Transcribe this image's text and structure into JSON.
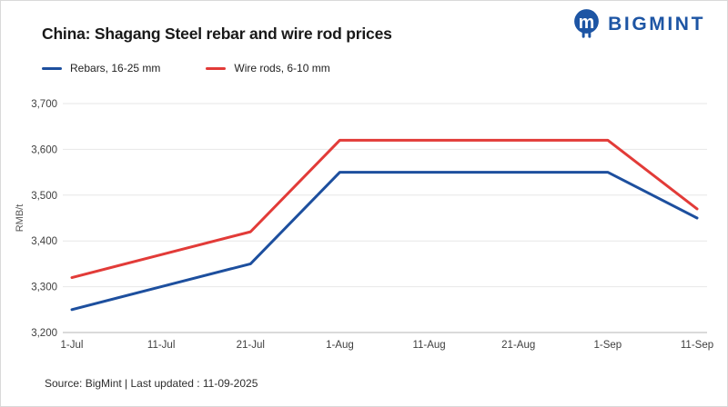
{
  "header": {
    "title": "China: Shagang Steel rebar and wire rod prices",
    "logo_text": "BIGMINT",
    "brand_color": "#1d55a4"
  },
  "chart_data": {
    "type": "line",
    "categories": [
      "1-Jul",
      "11-Jul",
      "21-Jul",
      "1-Aug",
      "11-Aug",
      "21-Aug",
      "1-Sep",
      "11-Sep"
    ],
    "series": [
      {
        "name": "Rebars, 16-25 mm",
        "color": "#1d4f9e",
        "values": [
          3250,
          3300,
          3350,
          3550,
          3550,
          3550,
          3550,
          3450
        ]
      },
      {
        "name": "Wire rods, 6-10 mm",
        "color": "#e23b38",
        "values": [
          3320,
          3370,
          3420,
          3620,
          3620,
          3620,
          3620,
          3470
        ]
      }
    ],
    "xlabel": "",
    "ylabel": "RMB/t",
    "ylim": [
      3200,
      3700
    ],
    "ytick_step": 100,
    "grid": true,
    "grid_color": "#e7e7e7",
    "axis_line_color": "#b5b5b5",
    "tick_label_color": "#3f3f3f",
    "ylabel_color": "#555555",
    "legend_position": "top-left"
  },
  "footer": {
    "source": "Source: BigMint | Last updated : 11-09-2025"
  }
}
